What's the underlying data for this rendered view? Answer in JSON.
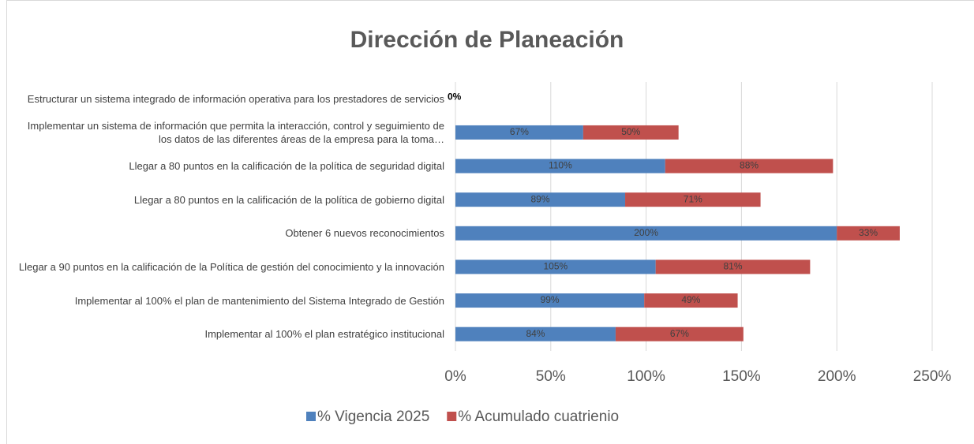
{
  "chart_data": {
    "type": "stacked-bar-horizontal",
    "title": "Dirección de Planeación",
    "categories": [
      "Estructurar un sistema integrado de información operativa para los prestadores de servicios",
      "Implementar un sistema de información que permita la interacción, control y seguimiento de los datos de las diferentes áreas de la empresa para la toma…",
      "Llegar a 80 puntos en la calificación de la política de seguridad digital",
      "Llegar a 80 puntos en la calificación de la política de gobierno digital",
      "Obtener 6 nuevos reconocimientos",
      "Llegar a 90 puntos en la calificación de la Política de gestión del conocimiento y la innovación",
      "Implementar al 100% el plan de mantenimiento del Sistema Integrado de Gestión",
      "Implementar al 100% el plan estratégico institucional"
    ],
    "series": [
      {
        "name": "% Vigencia 2025",
        "color": "#4f81bd",
        "values": [
          0,
          67,
          110,
          89,
          200,
          105,
          99,
          84
        ],
        "value_labels": [
          "0%",
          "67%",
          "110%",
          "89%",
          "200%",
          "105%",
          "99%",
          "84%"
        ]
      },
      {
        "name": "% Acumulado cuatrienio",
        "color": "#c0504d",
        "values": [
          null,
          50,
          88,
          71,
          33,
          81,
          49,
          67
        ],
        "value_labels": [
          null,
          "50%",
          "88%",
          "71%",
          "33%",
          "81%",
          "49%",
          "67%"
        ]
      }
    ],
    "xlim": [
      0,
      250
    ],
    "xticks": [
      {
        "value": 0,
        "label": "0%"
      },
      {
        "value": 50,
        "label": "50%"
      },
      {
        "value": 100,
        "label": "100%"
      },
      {
        "value": 150,
        "label": "150%"
      },
      {
        "value": 200,
        "label": "200%"
      },
      {
        "value": 250,
        "label": "250%"
      }
    ],
    "grid": true,
    "legend": "bottom"
  }
}
